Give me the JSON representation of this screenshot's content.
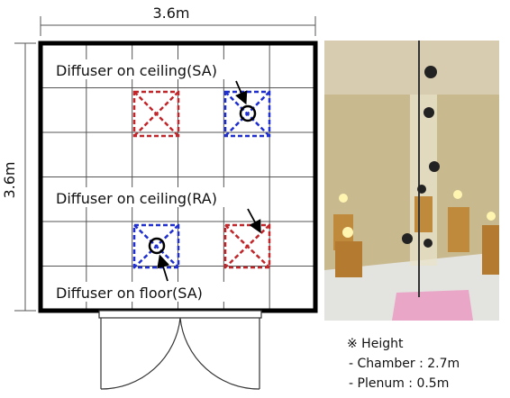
{
  "dimensions": {
    "width": "3.6m",
    "depth": "3.6m"
  },
  "labels": {
    "ceiling_sa": "Diffuser on ceiling(SA)",
    "ceiling_ra": "Diffuser on ceiling(RA)",
    "floor_sa": "Diffuser on floor(SA)"
  },
  "note": {
    "title": "※ Height",
    "lines": [
      "- Chamber : 2.7m",
      "- Plenum : 0.5m"
    ]
  }
}
